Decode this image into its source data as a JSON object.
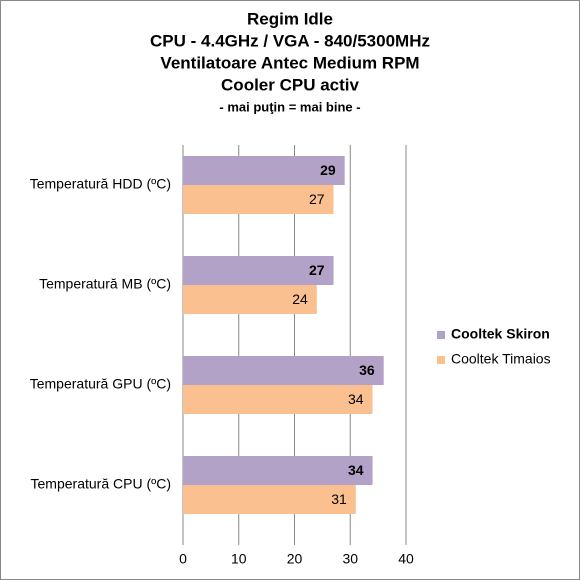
{
  "chart_data": {
    "type": "barh",
    "title": [
      "Regim Idle",
      "CPU - 4.4GHz / VGA - 840/5300MHz",
      "Ventilatoare Antec Medium RPM",
      "Cooler CPU activ"
    ],
    "subtitle": "- mai puţin = mai bine -",
    "categories": [
      "Temperatură  HDD (ºC)",
      "Temperatură  MB (ºC)",
      "Temperatură  GPU (ºC)",
      "Temperatură  CPU (ºC)"
    ],
    "series": [
      {
        "name": "Cooltek Skiron",
        "color": "#b3a2c7",
        "values": [
          29,
          27,
          36,
          34
        ]
      },
      {
        "name": "Cooltek Timaios",
        "color": "#fac090",
        "values": [
          27,
          24,
          34,
          31
        ]
      }
    ],
    "xlim": [
      0,
      40
    ],
    "xticks": [
      0,
      10,
      20,
      30,
      40
    ],
    "grid": true,
    "legend": "right"
  }
}
